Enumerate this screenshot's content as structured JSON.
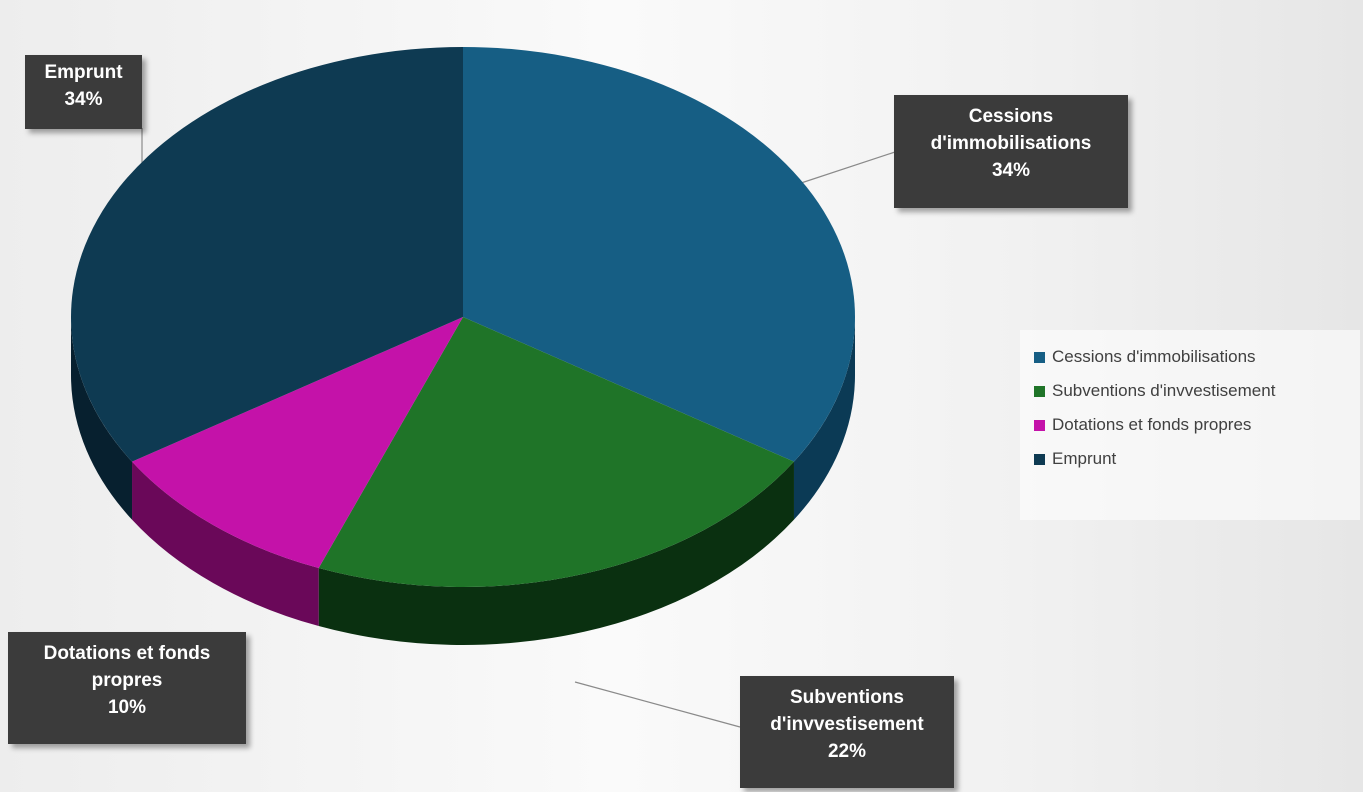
{
  "chart_data": {
    "type": "pie",
    "title": "",
    "legend_placement": "right",
    "slices": [
      {
        "label": "Cessions d'immobilisations",
        "legend_label": "Cessions d'immobilisations",
        "callout_lines": [
          "Cessions",
          "d'immobilisations"
        ],
        "value": 34,
        "value_label": "34%",
        "color": "#165e84",
        "side_color": "#0b3a55"
      },
      {
        "label": "Subventions d'invvestisement",
        "legend_label": "Subventions d'invvestisement",
        "callout_lines": [
          "Subventions",
          "d'invvestisement"
        ],
        "value": 22,
        "value_label": "22%",
        "color": "#1f7428",
        "side_color": "#0a3010"
      },
      {
        "label": "Dotations et fonds propres",
        "legend_label": "Dotations et fonds propres",
        "callout_lines": [
          "Dotations et fonds",
          "propres"
        ],
        "value": 10,
        "value_label": "10%",
        "color": "#c412a9",
        "side_color": "#6a0859"
      },
      {
        "label": "Emprunt",
        "legend_label": "Emprunt",
        "callout_lines": [
          "Emprunt"
        ],
        "value": 34,
        "value_label": "34%",
        "color": "#0e3a52",
        "side_color": "#07202f"
      }
    ]
  }
}
